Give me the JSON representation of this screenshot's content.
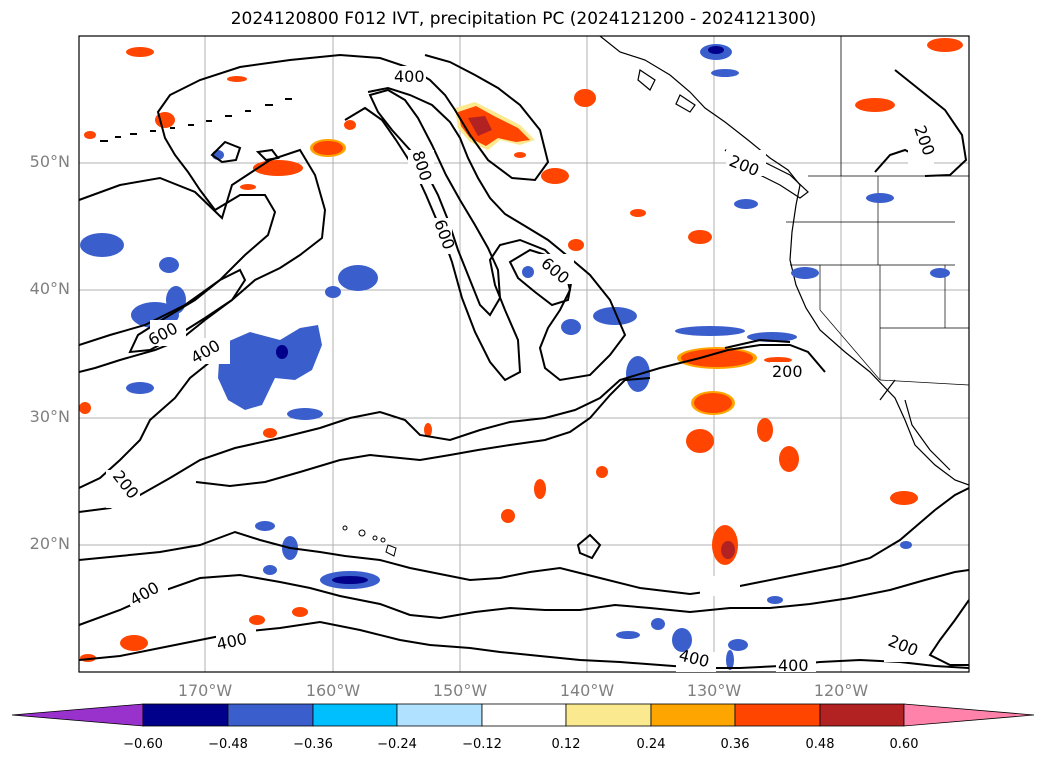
{
  "title": "2024120800 F012 IVT, precipitation PC (2024121200 - 2024121300)",
  "map": {
    "region": "North Pacific and western North America",
    "lat_labels": [
      "50°N",
      "40°N",
      "30°N",
      "20°N"
    ],
    "lon_labels": [
      "170°W",
      "160°W",
      "150°W",
      "140°W",
      "130°W",
      "120°W"
    ],
    "ivt_contour_labels": [
      "400",
      "800",
      "600",
      "600",
      "600",
      "400",
      "200",
      "200",
      "200",
      "200",
      "400",
      "400",
      "400",
      "400",
      "200"
    ],
    "contour_color": "#000000",
    "grid": true,
    "coastlines": true,
    "state_borders": true
  },
  "colorbar": {
    "ticks": [
      "−0.60",
      "−0.48",
      "−0.36",
      "−0.24",
      "−0.12",
      "0.12",
      "0.24",
      "0.36",
      "0.48",
      "0.60"
    ],
    "colors": [
      "#9932cc",
      "#00008b",
      "#3a5fcd",
      "#00bfff",
      "#b0e2ff",
      "#ffffff",
      "#fbe98f",
      "#ffa500",
      "#ff4500",
      "#b22222",
      "#ff82ab"
    ],
    "extend": "both"
  }
}
